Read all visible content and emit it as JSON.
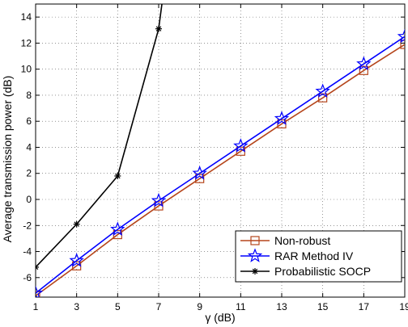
{
  "chart_data": {
    "type": "line",
    "xlabel": "γ (dB)",
    "ylabel": "Average transmission power (dB)",
    "xlim": [
      1,
      19
    ],
    "ylim": [
      -7.5,
      15
    ],
    "x_ticks": [
      1,
      3,
      5,
      7,
      9,
      11,
      13,
      15,
      17,
      19
    ],
    "y_ticks": [
      -6,
      -4,
      -2,
      0,
      2,
      4,
      6,
      8,
      10,
      12,
      14
    ],
    "grid": true,
    "legend_position": "bottom-right",
    "series": [
      {
        "name": "Non-robust",
        "color": "#b5451b",
        "marker": "square",
        "x": [
          1,
          3,
          5,
          7,
          9,
          11,
          13,
          15,
          17,
          19
        ],
        "y": [
          -7.4,
          -5.1,
          -2.7,
          -0.5,
          1.6,
          3.7,
          5.8,
          7.8,
          9.9,
          11.9
        ]
      },
      {
        "name": "RAR Method IV",
        "color": "#0000ff",
        "marker": "star",
        "x": [
          1,
          3,
          5,
          7,
          9,
          11,
          13,
          15,
          17,
          19
        ],
        "y": [
          -7.2,
          -4.7,
          -2.3,
          -0.1,
          2.0,
          4.1,
          6.2,
          8.3,
          10.4,
          12.5
        ]
      },
      {
        "name": "Probabilistic SOCP",
        "color": "#000000",
        "marker": "asterisk",
        "x": [
          1,
          3,
          5,
          7,
          7.2
        ],
        "y": [
          -5.2,
          -1.9,
          1.8,
          13.1,
          15.5
        ]
      }
    ]
  }
}
